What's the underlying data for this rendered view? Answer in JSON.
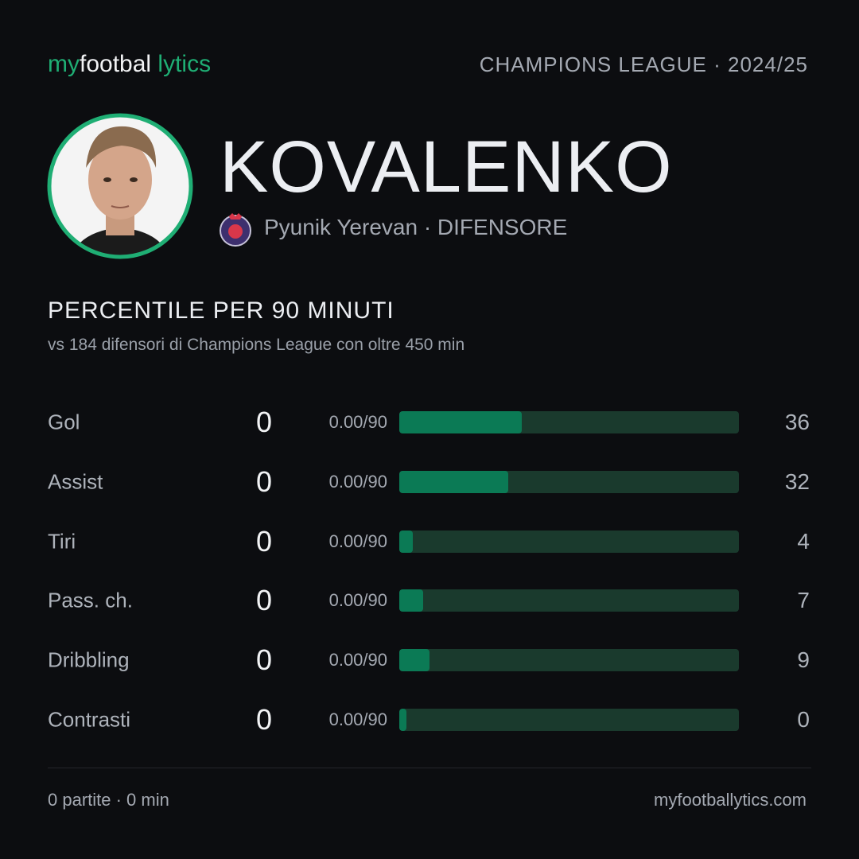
{
  "header": {
    "brand": [
      "my",
      "footbal",
      "lytics"
    ],
    "competition": "CHAMPIONS LEAGUE · 2024/25"
  },
  "player": {
    "name": "KOVALENKO",
    "meta": "Pyunik Yerevan · DIFENSORE"
  },
  "section": {
    "title": "PERCENTILE PER 90 MINUTI",
    "subtitle": "vs 184 difensori di Champions League con oltre 450 min"
  },
  "rows": [
    {
      "label": "Gol",
      "value": 0,
      "rate": "0.00/90",
      "percentile": 36
    },
    {
      "label": "Assist",
      "value": 0,
      "rate": "0.00/90",
      "percentile": 32
    },
    {
      "label": "Tiri",
      "value": 0,
      "rate": "0.00/90",
      "percentile": 4
    },
    {
      "label": "Pass. ch.",
      "value": 0,
      "rate": "0.00/90",
      "percentile": 7
    },
    {
      "label": "Dribbling",
      "value": 0,
      "rate": "0.00/90",
      "percentile": 9
    },
    {
      "label": "Contrasti",
      "value": 0,
      "rate": "0.00/90",
      "percentile": 0
    }
  ],
  "footer": {
    "stats": "0 partite · 0 min",
    "site": "myfootballytics.com"
  }
}
